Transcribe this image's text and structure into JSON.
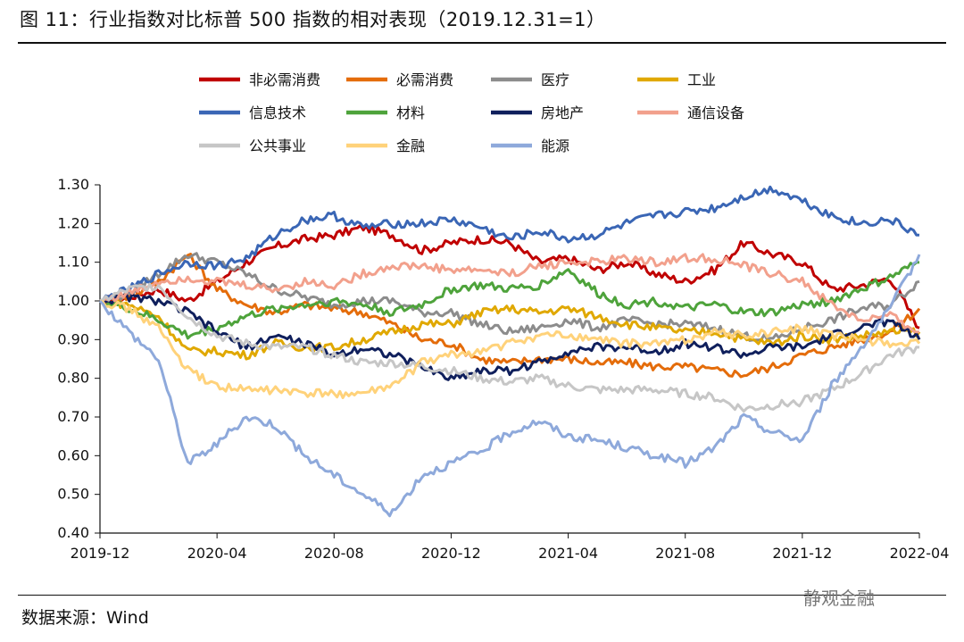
{
  "title": "图 11：行业指数对比标普 500 指数的相对表现（2019.12.31=1）",
  "source": "数据来源：Wind",
  "watermark": "静观金融",
  "chart_data": {
    "type": "line",
    "title": "图 11：行业指数对比标普 500 指数的相对表现（2019.12.31=1）",
    "xlabel": "",
    "ylabel": "",
    "x_ticks": [
      "2019-12",
      "2020-04",
      "2020-08",
      "2020-12",
      "2021-04",
      "2021-08",
      "2021-12",
      "2022-04"
    ],
    "y_ticks": [
      "1.30",
      "1.20",
      "1.10",
      "1.00",
      "0.90",
      "0.80",
      "0.70",
      "0.60",
      "0.50",
      "0.40"
    ],
    "ylim": [
      0.4,
      1.3
    ],
    "xlim": [
      "2019-12",
      "2022-04"
    ],
    "grid": false,
    "legend_position": "top",
    "x": [
      "2019-12",
      "2020-01",
      "2020-02",
      "2020-03",
      "2020-04",
      "2020-05",
      "2020-06",
      "2020-07",
      "2020-08",
      "2020-09",
      "2020-10",
      "2020-11",
      "2020-12",
      "2021-01",
      "2021-02",
      "2021-03",
      "2021-04",
      "2021-05",
      "2021-06",
      "2021-07",
      "2021-08",
      "2021-09",
      "2021-10",
      "2021-11",
      "2021-12",
      "2022-01",
      "2022-02",
      "2022-03",
      "2022-04"
    ],
    "series": [
      {
        "name": "非必需消费",
        "color": "#C00000",
        "values": [
          1.0,
          1.01,
          1.03,
          1.0,
          1.05,
          1.1,
          1.14,
          1.16,
          1.17,
          1.19,
          1.17,
          1.13,
          1.15,
          1.16,
          1.15,
          1.1,
          1.11,
          1.08,
          1.1,
          1.07,
          1.05,
          1.08,
          1.15,
          1.12,
          1.1,
          1.03,
          1.04,
          1.06,
          0.93
        ]
      },
      {
        "name": "必需消费",
        "color": "#E46C0A",
        "values": [
          1.0,
          1.01,
          1.05,
          1.12,
          1.03,
          0.99,
          0.97,
          0.99,
          0.98,
          0.97,
          0.94,
          0.9,
          0.89,
          0.85,
          0.84,
          0.85,
          0.85,
          0.84,
          0.84,
          0.83,
          0.83,
          0.82,
          0.81,
          0.83,
          0.86,
          0.88,
          0.9,
          0.92,
          0.98
        ]
      },
      {
        "name": "医疗",
        "color": "#8C8C8C",
        "values": [
          1.0,
          1.02,
          1.07,
          1.12,
          1.1,
          1.07,
          1.03,
          1.01,
          0.99,
          1.0,
          1.0,
          0.97,
          0.97,
          0.94,
          0.92,
          0.93,
          0.95,
          0.93,
          0.95,
          0.94,
          0.94,
          0.93,
          0.91,
          0.9,
          0.93,
          0.95,
          0.98,
          0.99,
          1.05
        ]
      },
      {
        "name": "工业",
        "color": "#E0A800",
        "values": [
          1.0,
          0.99,
          0.96,
          0.87,
          0.87,
          0.86,
          0.89,
          0.88,
          0.88,
          0.9,
          0.92,
          0.94,
          0.94,
          0.97,
          0.98,
          0.97,
          0.98,
          0.96,
          0.94,
          0.93,
          0.92,
          0.92,
          0.9,
          0.89,
          0.91,
          0.9,
          0.91,
          0.92,
          0.92
        ]
      },
      {
        "name": "信息技术",
        "color": "#3A66B5",
        "values": [
          1.0,
          1.03,
          1.07,
          1.1,
          1.09,
          1.11,
          1.17,
          1.21,
          1.22,
          1.19,
          1.2,
          1.2,
          1.21,
          1.19,
          1.16,
          1.18,
          1.16,
          1.17,
          1.2,
          1.22,
          1.23,
          1.24,
          1.27,
          1.29,
          1.26,
          1.22,
          1.2,
          1.21,
          1.17
        ]
      },
      {
        "name": "材料",
        "color": "#4EA33B",
        "values": [
          1.0,
          0.98,
          0.95,
          0.91,
          0.93,
          0.96,
          0.98,
          0.99,
          1.0,
          0.99,
          0.97,
          0.99,
          1.03,
          1.04,
          1.03,
          1.04,
          1.08,
          1.02,
          0.99,
          1.0,
          0.98,
          0.99,
          0.97,
          0.97,
          0.99,
          1.0,
          1.03,
          1.06,
          1.1
        ]
      },
      {
        "name": "房地产",
        "color": "#0F1F5C",
        "values": [
          1.0,
          1.01,
          1.0,
          0.97,
          0.92,
          0.88,
          0.91,
          0.89,
          0.86,
          0.88,
          0.86,
          0.83,
          0.8,
          0.82,
          0.82,
          0.84,
          0.87,
          0.88,
          0.88,
          0.87,
          0.89,
          0.88,
          0.86,
          0.88,
          0.88,
          0.91,
          0.93,
          0.95,
          0.9
        ]
      },
      {
        "name": "通信设备",
        "color": "#F2A08C",
        "values": [
          1.0,
          1.02,
          1.05,
          1.06,
          1.05,
          1.04,
          1.03,
          1.05,
          1.04,
          1.07,
          1.09,
          1.09,
          1.08,
          1.08,
          1.07,
          1.09,
          1.1,
          1.1,
          1.11,
          1.1,
          1.11,
          1.11,
          1.09,
          1.07,
          1.05,
          0.99,
          0.95,
          0.96,
          0.92
        ]
      },
      {
        "name": "公共事业",
        "color": "#C6C6C6",
        "values": [
          1.0,
          1.03,
          1.04,
          0.96,
          0.91,
          0.89,
          0.88,
          0.88,
          0.86,
          0.84,
          0.84,
          0.83,
          0.82,
          0.8,
          0.79,
          0.8,
          0.78,
          0.77,
          0.77,
          0.77,
          0.76,
          0.75,
          0.72,
          0.73,
          0.74,
          0.77,
          0.81,
          0.86,
          0.88
        ]
      },
      {
        "name": "金融",
        "color": "#FFD27A",
        "values": [
          1.0,
          0.98,
          0.93,
          0.82,
          0.78,
          0.77,
          0.77,
          0.76,
          0.76,
          0.76,
          0.78,
          0.84,
          0.86,
          0.87,
          0.89,
          0.91,
          0.91,
          0.9,
          0.89,
          0.89,
          0.9,
          0.92,
          0.91,
          0.92,
          0.93,
          0.91,
          0.9,
          0.89,
          0.89
        ]
      },
      {
        "name": "能源",
        "color": "#8EA9DB",
        "values": [
          1.0,
          0.92,
          0.85,
          0.58,
          0.63,
          0.7,
          0.68,
          0.6,
          0.55,
          0.5,
          0.45,
          0.55,
          0.58,
          0.61,
          0.66,
          0.69,
          0.65,
          0.64,
          0.62,
          0.6,
          0.58,
          0.62,
          0.7,
          0.66,
          0.64,
          0.78,
          0.88,
          0.98,
          1.12
        ]
      }
    ]
  }
}
